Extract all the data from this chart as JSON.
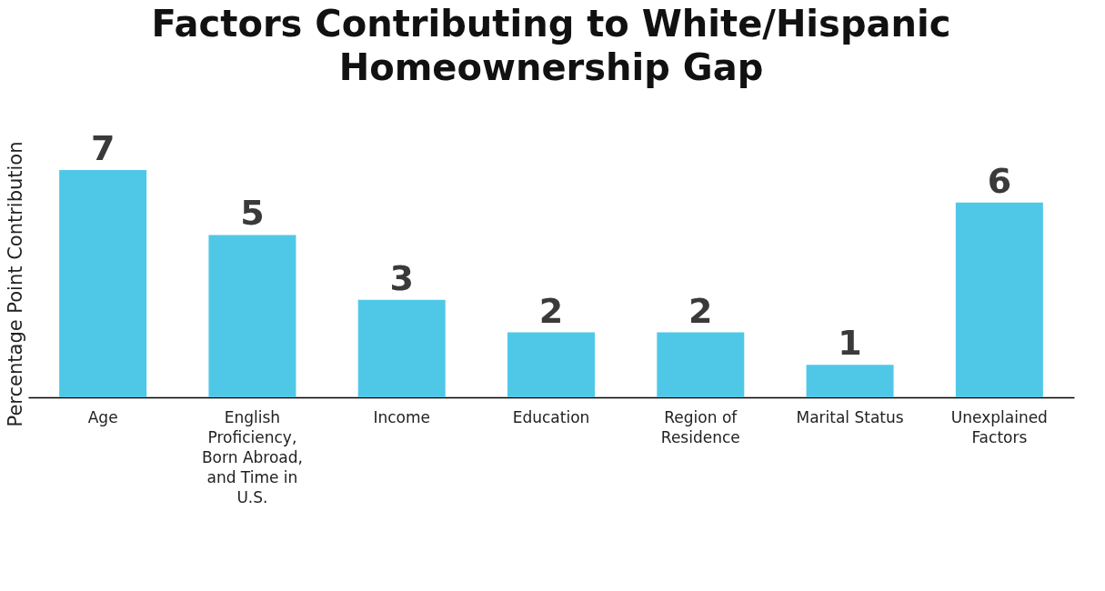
{
  "chart_data": {
    "type": "bar",
    "title": "Factors Contributing to White/Hispanic Homeownership Gap",
    "ylabel": "Percentage Point Contribution",
    "categories": [
      "Age",
      "English Proficiency, Born Abroad, and Time in U.S.",
      "Income",
      "Education",
      "Region of Residence",
      "Marital Status",
      "Unexplained Factors"
    ],
    "values": [
      7,
      5,
      3,
      2,
      2,
      1,
      6
    ],
    "color": "#4fc8e8",
    "data_labels": true,
    "grid": false
  }
}
